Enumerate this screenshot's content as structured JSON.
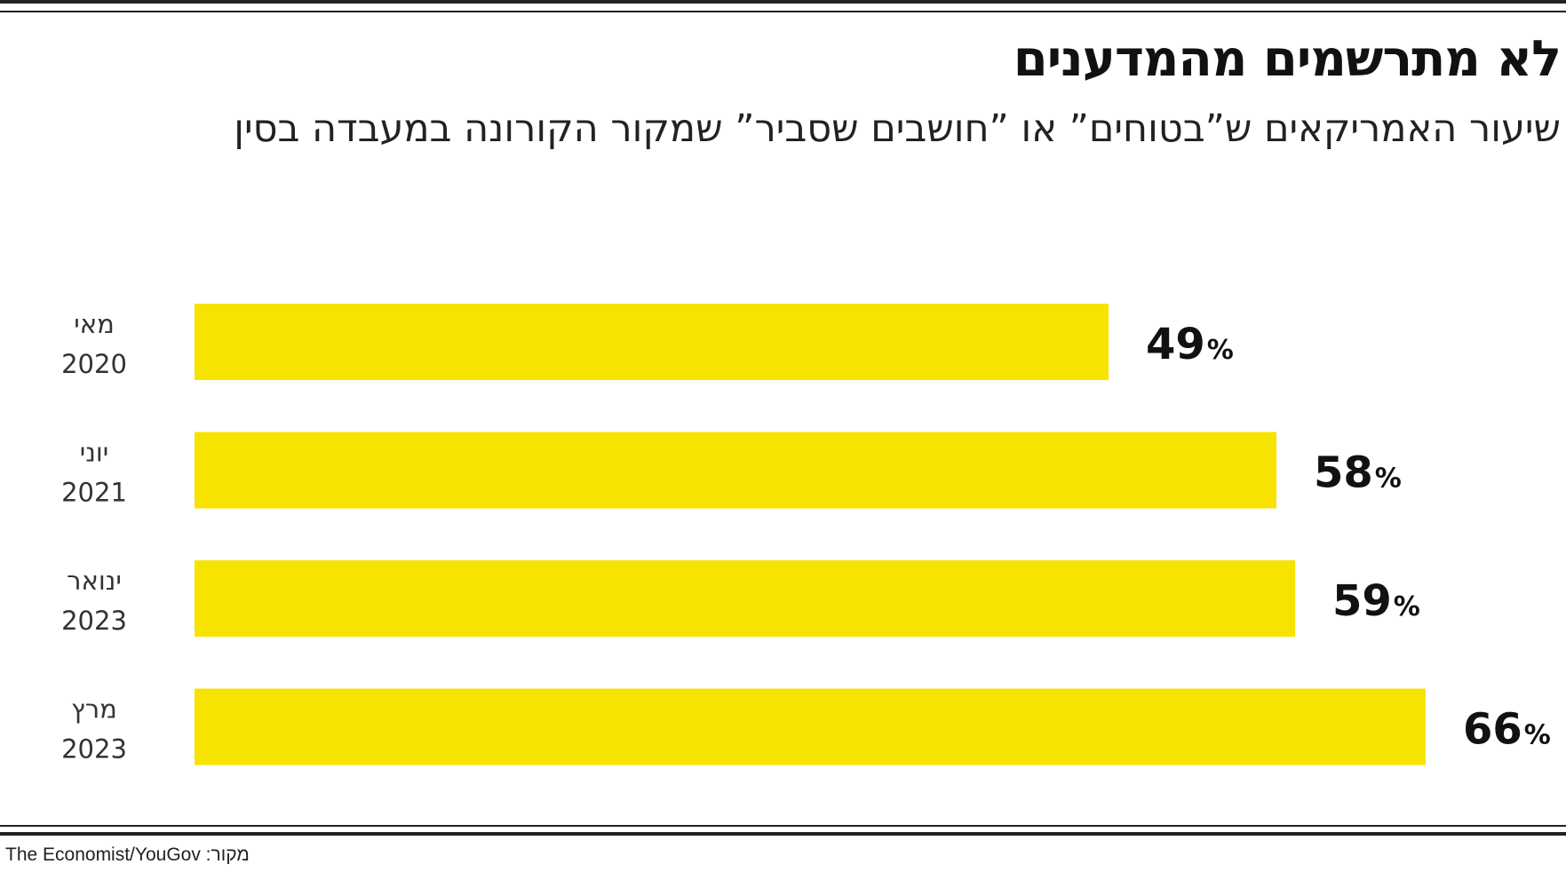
{
  "title": "לא מתרשמים מהמדענים",
  "subtitle": "שיעור האמריקאים ש”בטוחים” או ”חושבים שסביר” שמקור הקורונה במעבדה בסין",
  "source": "The Economist/YouGov :מקור",
  "colors": {
    "bar": "#f7e300",
    "text": "#111111",
    "rule": "#222222"
  },
  "chart_data": {
    "type": "bar",
    "orientation": "horizontal",
    "categories": [
      [
        "מאי",
        "2020"
      ],
      [
        "יוני",
        "2021"
      ],
      [
        "ינואר",
        "2023"
      ],
      [
        "מרץ",
        "2023"
      ]
    ],
    "values": [
      49,
      58,
      59,
      66
    ],
    "value_labels": [
      "49",
      "58",
      "59",
      "66"
    ],
    "unit": "%",
    "title": "לא מתרשמים מהמדענים",
    "xlabel": "",
    "ylabel": "",
    "xlim": [
      0,
      66
    ],
    "grid": false
  }
}
